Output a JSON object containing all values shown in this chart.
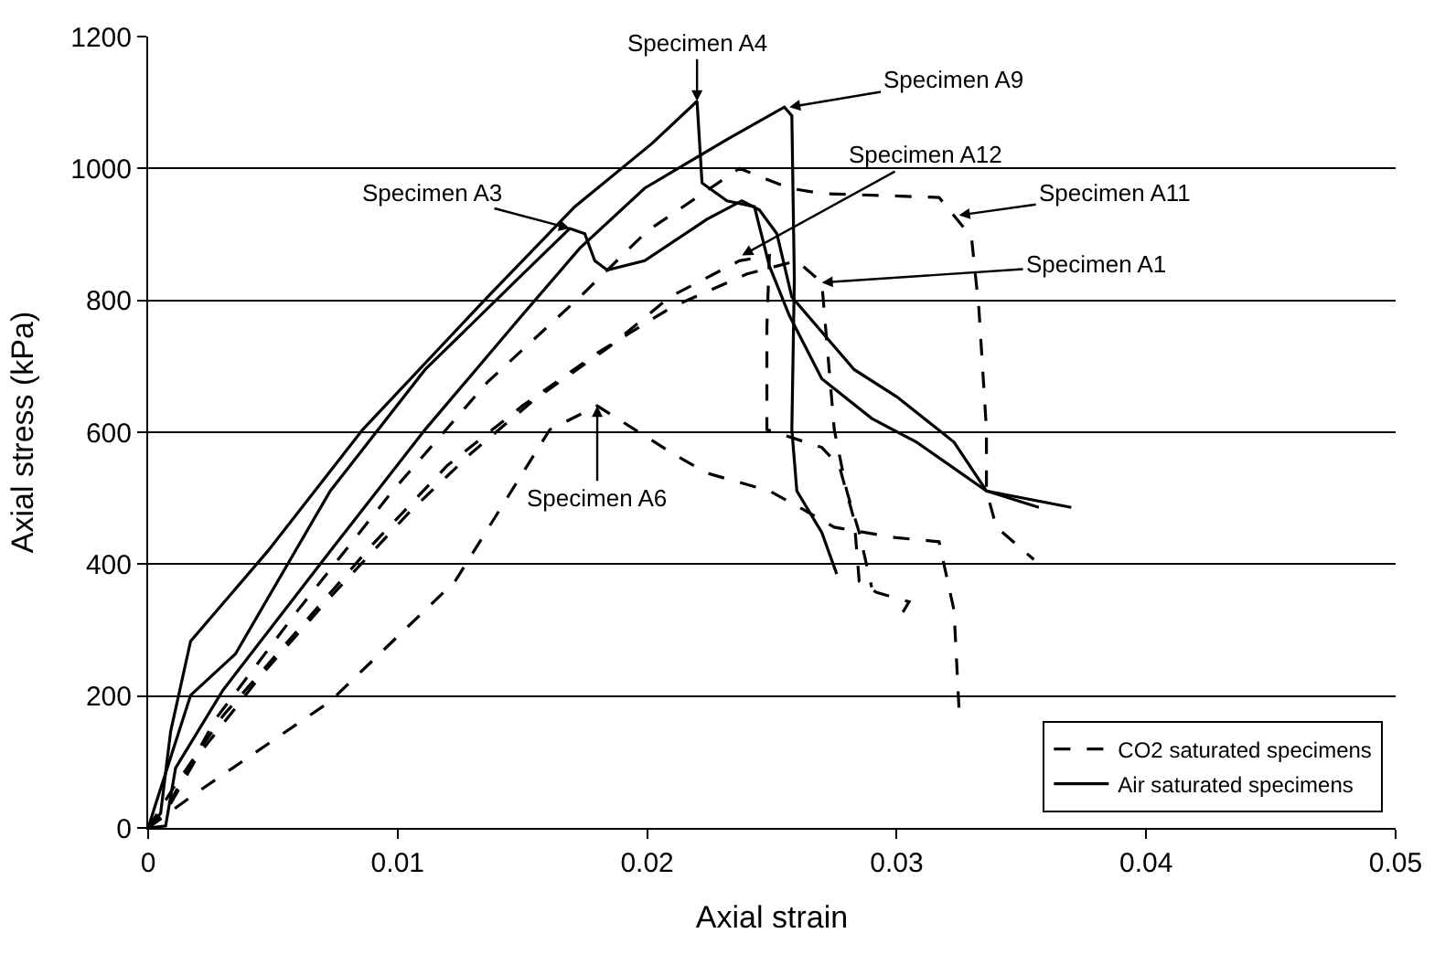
{
  "chart_data": {
    "type": "line",
    "xlabel": "Axial strain",
    "ylabel": "Axial stress (kPa)",
    "xlim": [
      0,
      0.05
    ],
    "xticks": [
      0,
      0.01,
      0.02,
      0.03,
      0.04,
      0.05
    ],
    "ylim": [
      0,
      1200
    ],
    "yticks": [
      0,
      200,
      400,
      600,
      800,
      1000,
      1200
    ],
    "grid": "y",
    "legend": "bottom right",
    "marker": "none",
    "series": [
      {
        "name": "CO2 saturated specimens",
        "color": "#000000",
        "line_style": "dashed",
        "x": [
          0,
          0.0007,
          0.0027,
          0.006,
          0.0098,
          0.0136,
          0.0173,
          0.02,
          0.0237,
          0.0257,
          0.027,
          0.0317,
          0.033,
          0.0333,
          0.0336,
          0.0336,
          0.034,
          0.0355
        ],
        "values": [
          0,
          27,
          165,
          330,
          511,
          676,
          805,
          905,
          1000,
          970,
          962,
          956,
          896,
          786,
          604,
          511,
          456,
          407
        ]
      },
      {
        "color": "#000000",
        "line_style": "dashed",
        "x": [
          0,
          0.002,
          0.0073,
          0.0123,
          0.0161,
          0.018,
          0.0211,
          0.0224,
          0.0249,
          0.0262,
          0.0275,
          0.03,
          0.0317,
          0.0323,
          0.0325
        ],
        "values": [
          0,
          55,
          192,
          374,
          604,
          640,
          566,
          538,
          511,
          484,
          456,
          440,
          434,
          330,
          181
        ]
      },
      {
        "color": "#000000",
        "line_style": "dashed",
        "x": [
          0,
          0.0008,
          0.002,
          0.0045,
          0.0073,
          0.0105,
          0.013,
          0.0155,
          0.0185,
          0.0209,
          0.0237,
          0.0249,
          0.0248,
          0.0248,
          0.027,
          0.0277,
          0.0283,
          0.0285,
          0.0292,
          0.0305,
          0.0302
        ],
        "values": [
          0,
          30,
          110,
          230,
          350,
          480,
          570,
          650,
          730,
          805,
          860,
          868,
          760,
          604,
          577,
          549,
          467,
          374,
          357,
          343,
          324
        ]
      },
      {
        "color": "#000000",
        "line_style": "dashed",
        "x": [
          0,
          0.001,
          0.003,
          0.006,
          0.009,
          0.012,
          0.015,
          0.018,
          0.021,
          0.024,
          0.026,
          0.027,
          0.0275,
          0.028,
          0.0285,
          0.029
        ],
        "values": [
          0,
          60,
          170,
          300,
          430,
          550,
          640,
          720,
          790,
          840,
          860,
          827,
          604,
          511,
          448,
          365
        ]
      },
      {
        "name": "Air saturated specimens",
        "color": "#000000",
        "line_style": "solid",
        "x": [
          0,
          0.0005,
          0.0009,
          0.0017,
          0.0048,
          0.0086,
          0.0136,
          0.0171,
          0.0202,
          0.022,
          0.0222,
          0.0232,
          0.0243,
          0.0249,
          0.0257,
          0.027,
          0.029,
          0.0308,
          0.0336,
          0.037
        ],
        "values": [
          0,
          22,
          146,
          283,
          420,
          604,
          805,
          942,
          1038,
          1102,
          978,
          951,
          942,
          852,
          777,
          681,
          621,
          585,
          511,
          486
        ]
      },
      {
        "color": "#000000",
        "line_style": "solid",
        "x": [
          0,
          0.0003,
          0.0017,
          0.0035,
          0.0073,
          0.0111,
          0.0148,
          0.0169,
          0.0175,
          0.0179,
          0.0184,
          0.0199,
          0.0224,
          0.0238,
          0.0245,
          0.0252,
          0.0258,
          0.0283,
          0.03,
          0.0323,
          0.0336,
          0.0357
        ],
        "values": [
          0,
          36,
          201,
          264,
          511,
          695,
          832,
          909,
          901,
          860,
          846,
          860,
          923,
          951,
          937,
          901,
          805,
          695,
          654,
          585,
          511,
          486
        ]
      },
      {
        "color": "#000000",
        "line_style": "solid",
        "x": [
          0,
          0.0007,
          0.0011,
          0.003,
          0.0073,
          0.0111,
          0.0148,
          0.0173,
          0.0199,
          0.0232,
          0.0255,
          0.0258,
          0.0259,
          0.0258,
          0.026,
          0.027,
          0.0276
        ],
        "values": [
          0,
          3,
          91,
          209,
          420,
          604,
          769,
          879,
          970,
          1044,
          1093,
          1080,
          832,
          604,
          511,
          448,
          385
        ]
      }
    ],
    "annotations": [
      {
        "text": "Specimen A4",
        "x": 0.022,
        "y": 1102
      },
      {
        "text": "Specimen A9",
        "x": 0.0257,
        "y": 1093
      },
      {
        "text": "Specimen A12",
        "x": 0.0238,
        "y": 868
      },
      {
        "text": "Specimen A3",
        "x": 0.0169,
        "y": 909
      },
      {
        "text": "Specimen A11",
        "x": 0.0325,
        "y": 929
      },
      {
        "text": "Specimen A1",
        "x": 0.027,
        "y": 827
      },
      {
        "text": "Specimen A6",
        "x": 0.018,
        "y": 640
      }
    ]
  }
}
